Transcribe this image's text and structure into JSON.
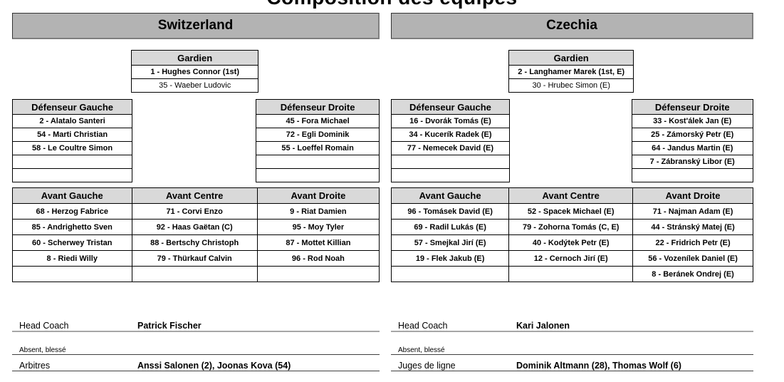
{
  "title": "Composition des équipes",
  "colors": {
    "team_header_bg": "#b3b3b3",
    "column_header_bg": "#d9d9d9",
    "cell_border": "#000000",
    "coach_rule": "#a6a6a6"
  },
  "teams": [
    {
      "name": "Switzerland",
      "goalie": {
        "header": "Gardien",
        "players": [
          "1 - Hughes Connor (1st)",
          "35 - Waeber Ludovic"
        ]
      },
      "defense_left": {
        "header": "Défenseur Gauche",
        "players": [
          "2 - Alatalo Santeri",
          "54 - Marti Christian",
          "58 - Le Coultre Simon",
          "",
          ""
        ]
      },
      "defense_right": {
        "header": "Défenseur Droite",
        "players": [
          "45 - Fora Michael",
          "72 - Egli Dominik",
          "55 - Loeffel Romain",
          "",
          ""
        ]
      },
      "forwards": {
        "headers": [
          "Avant Gauche",
          "Avant Centre",
          "Avant Droite"
        ],
        "rows": [
          [
            "68 - Herzog Fabrice",
            "71 - Corvi Enzo",
            "9 - Riat Damien"
          ],
          [
            "85 - Andrighetto Sven",
            "92 - Haas Gaëtan (C)",
            "95 - Moy Tyler"
          ],
          [
            "60 - Scherwey Tristan",
            "88 - Bertschy Christoph",
            "87 - Mottet Killian"
          ],
          [
            "8 - Riedi Willy",
            "79 - Thürkauf Calvin",
            "96 - Rod Noah"
          ],
          [
            "",
            "",
            ""
          ]
        ]
      },
      "info": {
        "coach_label": "Head Coach",
        "coach_value": "Patrick Fischer",
        "absent_label": "Absent, blessé",
        "absent_value": "",
        "officials_label": "Arbitres",
        "officials_value": "Anssi Salonen (2), Joonas Kova (54)"
      }
    },
    {
      "name": "Czechia",
      "goalie": {
        "header": "Gardien",
        "players": [
          "2 - Langhamer Marek (1st, E)",
          "30 - Hrubec Simon (E)"
        ]
      },
      "defense_left": {
        "header": "Défenseur Gauche",
        "players": [
          "16 - Dvorák Tomás (E)",
          "34 - Kucerík Radek (E)",
          "77 - Nemecek David (E)",
          "",
          ""
        ]
      },
      "defense_right": {
        "header": "Défenseur Droite",
        "players": [
          "33 - Kost'álek Jan (E)",
          "25 - Zámorský Petr (E)",
          "64 - Jandus Martin (E)",
          "7 - Zábranský Libor (E)",
          ""
        ]
      },
      "forwards": {
        "headers": [
          "Avant Gauche",
          "Avant Centre",
          "Avant Droite"
        ],
        "rows": [
          [
            "96 - Tomásek David (E)",
            "52 - Spacek Michael (E)",
            "71 - Najman Adam (E)"
          ],
          [
            "69 - Radil Lukás (E)",
            "79 - Zohorna Tomás (C, E)",
            "44 - Stránský Matej (E)"
          ],
          [
            "57 - Smejkal Jirí (E)",
            "40 - Kodýtek Petr (E)",
            "22 - Fridrich Petr (E)"
          ],
          [
            "19 - Flek Jakub (E)",
            "12 - Cernoch Jirí (E)",
            "56 - Vozenílek Daniel (E)"
          ],
          [
            "",
            "",
            "8 - Beránek Ondrej (E)"
          ]
        ]
      },
      "info": {
        "coach_label": "Head Coach",
        "coach_value": "Kari Jalonen",
        "absent_label": "Absent, blessé",
        "absent_value": "",
        "officials_label": "Juges de ligne",
        "officials_value": "Dominik Altmann (28), Thomas Wolf (6)"
      }
    }
  ]
}
